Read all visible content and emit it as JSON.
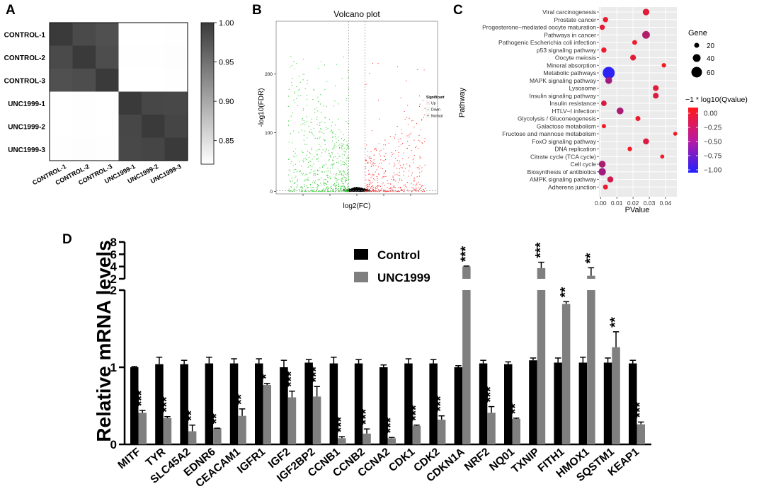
{
  "panelA": {
    "label": "A",
    "chart_data": {
      "type": "heatmap",
      "rows": [
        "CONTROL-1",
        "CONTROL-2",
        "CONTROL-3",
        "UNC1999-1",
        "UNC1999-2",
        "UNC1999-3"
      ],
      "cols": [
        "CONTROL-1",
        "CONTROL-2",
        "CONTROL-3",
        "UNC1999-1",
        "UNC1999-2",
        "UNC1999-3"
      ],
      "values": [
        [
          1.0,
          0.985,
          0.98,
          0.82,
          0.82,
          0.821
        ],
        [
          0.985,
          1.0,
          0.983,
          0.821,
          0.821,
          0.822
        ],
        [
          0.98,
          0.983,
          1.0,
          0.82,
          0.82,
          0.821
        ],
        [
          0.82,
          0.821,
          0.82,
          1.0,
          0.988,
          0.987
        ],
        [
          0.82,
          0.821,
          0.82,
          0.988,
          1.0,
          0.99
        ],
        [
          0.821,
          0.822,
          0.821,
          0.987,
          0.99,
          1.0
        ]
      ],
      "colorbar": {
        "min": 0.82,
        "max": 1.0,
        "ticks": [
          "1.00",
          "0.95",
          "0.90",
          "0.85"
        ]
      }
    }
  },
  "panelB": {
    "label": "B",
    "chart_data": {
      "type": "scatter",
      "title": "Volcano plot",
      "xlabel": "log2(FC)",
      "ylabel": "-log10(FDR)",
      "yticks": [
        "0",
        "100",
        "200"
      ],
      "ylim": [
        0,
        290
      ],
      "xlim": [
        -6,
        6
      ],
      "legend": {
        "title": "Significant",
        "items": [
          {
            "name": "Up",
            "color": "#ff3333"
          },
          {
            "name": "Down",
            "color": "#33cc33"
          },
          {
            "name": "Normal",
            "color": "#000000"
          }
        ]
      }
    }
  },
  "panelC": {
    "label": "C",
    "chart_data": {
      "type": "scatter",
      "xlabel": "PValue",
      "ylabel": "Pathway",
      "xticks": [
        "0.00",
        "0.01",
        "0.02",
        "0.03",
        "0.04"
      ],
      "xlim": [
        -0.001,
        0.047
      ],
      "size_legend": {
        "title": "Gene",
        "items": [
          "20",
          "40",
          "60"
        ]
      },
      "color_legend": {
        "title": "−1 * log10(Qvalue)",
        "ticks": [
          "0.00",
          "−0.25",
          "−0.50",
          "−0.75",
          "−1.00"
        ],
        "min": -1.05,
        "max": 0.1
      },
      "pathways": [
        {
          "name": "Viral carcinogenesis",
          "p": 0.028,
          "genes": 28,
          "q": -0.05
        },
        {
          "name": "Prostate cancer",
          "p": 0.003,
          "genes": 18,
          "q": 0.0
        },
        {
          "name": "Progesterone−mediated oocyte maturation",
          "p": 0.001,
          "genes": 18,
          "q": -0.05
        },
        {
          "name": "Pathways in cancer",
          "p": 0.028,
          "genes": 36,
          "q": -0.3
        },
        {
          "name": "Pathogenic Escherichia coli infection",
          "p": 0.021,
          "genes": 15,
          "q": 0.02
        },
        {
          "name": "p53 signaling pathway",
          "p": 0.002,
          "genes": 18,
          "q": 0.0
        },
        {
          "name": "Oocyte meiosis",
          "p": 0.02,
          "genes": 22,
          "q": -0.05
        },
        {
          "name": "Mineral absorption",
          "p": 0.039,
          "genes": 12,
          "q": 0.05
        },
        {
          "name": "Metabolic pathways",
          "p": 0.005,
          "genes": 68,
          "q": -1.0
        },
        {
          "name": "MAPK signaling pathway",
          "p": 0.005,
          "genes": 30,
          "q": -0.4
        },
        {
          "name": "Lysosome",
          "p": 0.034,
          "genes": 22,
          "q": -0.05
        },
        {
          "name": "Insulin signaling pathway",
          "p": 0.034,
          "genes": 22,
          "q": -0.1
        },
        {
          "name": "Insulin resistance",
          "p": 0.002,
          "genes": 20,
          "q": -0.1
        },
        {
          "name": "HTLV−I infection",
          "p": 0.012,
          "genes": 30,
          "q": -0.35
        },
        {
          "name": "Glycolysis / Gluconeogenesis",
          "p": 0.023,
          "genes": 16,
          "q": 0.0
        },
        {
          "name": "Galactose metabolism",
          "p": 0.002,
          "genes": 11,
          "q": 0.05
        },
        {
          "name": "Fructose and mannose metabolism",
          "p": 0.046,
          "genes": 9,
          "q": 0.05
        },
        {
          "name": "FoxO signaling pathway",
          "p": 0.028,
          "genes": 24,
          "q": -0.1
        },
        {
          "name": "DNA replication",
          "p": 0.018,
          "genes": 12,
          "q": 0.05
        },
        {
          "name": "Citrate cycle (TCA cycle)",
          "p": 0.038,
          "genes": 9,
          "q": 0.05
        },
        {
          "name": "Cell cycle",
          "p": 0.001,
          "genes": 30,
          "q": -0.35
        },
        {
          "name": "Biosynthesis of antibiotics",
          "p": 0.001,
          "genes": 34,
          "q": -0.4
        },
        {
          "name": "AMPK signaling pathway",
          "p": 0.006,
          "genes": 24,
          "q": -0.15
        },
        {
          "name": "Adherens junction",
          "p": 0.003,
          "genes": 16,
          "q": 0.0
        }
      ]
    }
  },
  "panelD": {
    "label": "D",
    "chart_data": {
      "type": "bar",
      "ylabel": "Relative mRNA levels",
      "yticks_lower": [
        "0",
        "1",
        "2"
      ],
      "yticks_upper": [
        "2",
        "4",
        "6",
        "8"
      ],
      "axis_break": true,
      "categories": [
        "MITF",
        "TYR",
        "SLC45A2",
        "EDNR6",
        "CEACAM1",
        "IGFR1",
        "IGF2",
        "IGF2BP2",
        "CCNB1",
        "CCNB2",
        "CCNA2",
        "CDK1",
        "CDK2",
        "CDKN1A",
        "NRF2",
        "NQ01",
        "TXNIP",
        "FITH1",
        "HMOX1",
        "SQSTM1",
        "KEAP1"
      ],
      "series": [
        {
          "name": "Control",
          "color": "#000000",
          "values": [
            1.0,
            1.04,
            1.04,
            1.05,
            1.05,
            1.05,
            1.0,
            1.06,
            1.05,
            1.05,
            1.0,
            1.05,
            1.05,
            1.0,
            1.05,
            1.04,
            1.09,
            1.06,
            1.06,
            1.06,
            1.05
          ],
          "errors": [
            0.01,
            0.09,
            0.05,
            0.08,
            0.06,
            0.06,
            0.09,
            0.04,
            0.08,
            0.05,
            0.03,
            0.06,
            0.05,
            0.02,
            0.04,
            0.03,
            0.03,
            0.06,
            0.07,
            0.06,
            0.04
          ]
        },
        {
          "name": "UNC1999",
          "color": "#7f7f7f",
          "values": [
            0.41,
            0.34,
            0.17,
            0.21,
            0.37,
            0.77,
            0.61,
            0.62,
            0.08,
            0.14,
            0.08,
            0.24,
            0.32,
            4.0,
            0.41,
            0.33,
            3.75,
            1.82,
            2.5,
            1.26,
            0.26
          ],
          "errors": [
            0.03,
            0.02,
            0.08,
            0.0,
            0.09,
            0.02,
            0.08,
            0.13,
            0.02,
            0.06,
            0.01,
            0.01,
            0.05,
            0.08,
            0.08,
            0.01,
            0.95,
            0.03,
            1.3,
            0.2,
            0.03
          ]
        }
      ],
      "significance": [
        "***",
        "***",
        "**",
        "**",
        "**",
        "*",
        "***",
        "***",
        "***",
        "***",
        "***",
        "***",
        "***",
        "***",
        "***",
        "**",
        "***",
        "**",
        "**",
        "**",
        "***"
      ]
    }
  }
}
